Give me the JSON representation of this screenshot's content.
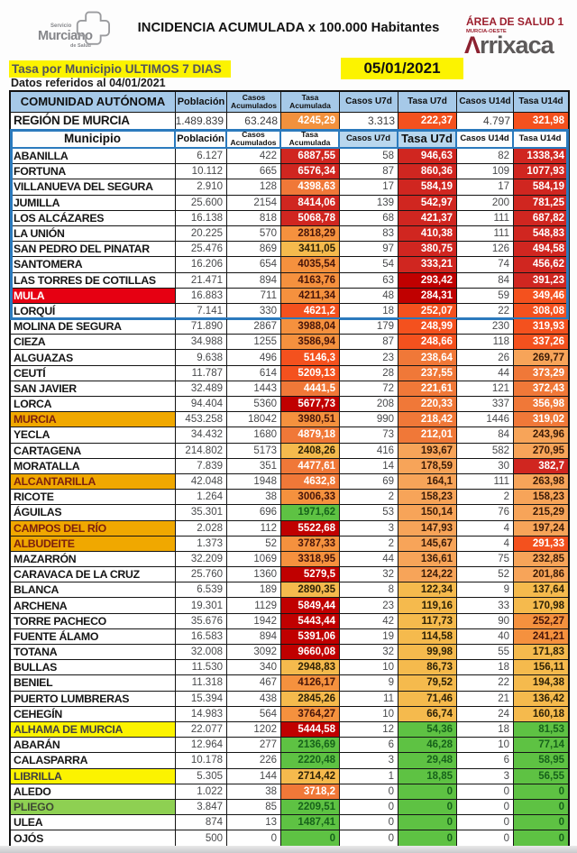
{
  "header": {
    "logo": {
      "line1": "Servicio",
      "line2": "Murciano",
      "line3": "de Salud"
    },
    "title": "INCIDENCIA ACUMULADA x 100.000 Habitantes",
    "area_line1": "ÁREA DE SALUD 1",
    "area_line2": "MURCIA-OESTE",
    "brand_first": "Λ",
    "brand_rest": "rrixaca",
    "subtitle": "Tasa por Municipio ULTIMOS 7 DIAS",
    "date": "05/01/2021",
    "note": "Datos referidos al 04/01/2021"
  },
  "colors": {
    "header_blue": "#a6c9e8",
    "blue_border": "#2b7abd",
    "value_dark_red": "#c00000",
    "value_red": "#d02620",
    "value_orange_red": "#f4511e",
    "value_orange": "#f07838",
    "value_orange_white_text": "#f2913d",
    "value_orange_black": "#f5913e",
    "value_light_orange": "#f7a459",
    "value_yellow_orange": "#f5ba4d",
    "value_green": "#5ec243",
    "name_red": "#e60012",
    "name_amber": "#f0a800",
    "name_yellow": "#fcf300",
    "name_light_green": "#8ed052",
    "highlight_yellow": "#fcf300"
  },
  "table": {
    "header1_col0": "COMUNIDAD AUTÓNOMA",
    "header2_col0": "Municipio",
    "columns": [
      {
        "label": "Población",
        "two": false
      },
      {
        "label": "Casos",
        "label2": "Acumulados",
        "two": true
      },
      {
        "label": "Tasa",
        "label2": "Acumulada",
        "two": true
      },
      {
        "label": "Casos U7d",
        "two": false
      },
      {
        "label": "Tasa U7d",
        "two": false
      },
      {
        "label": "Casos U14d",
        "two": false
      },
      {
        "label": "Tasa U14d",
        "two": false
      }
    ],
    "region_row": {
      "name": "REGIÓN DE MURCIA",
      "pop": "1.489.839",
      "ca": "63.248",
      "ta": "4245,29",
      "tac": "orbw",
      "c7": "3.313",
      "t7": "222,37",
      "t7c": "ored",
      "c14": "4.797",
      "t14": "321,98",
      "t14c": "ored"
    },
    "blue_box_row_count": 11,
    "rows": [
      {
        "name": "ABANILLA",
        "pop": "6.127",
        "ca": "422",
        "ta": "6887,55",
        "tac": "red",
        "c7": "58",
        "t7": "946,63",
        "t7c": "red",
        "c14": "82",
        "t14": "1338,34",
        "t14c": "red"
      },
      {
        "name": "FORTUNA",
        "pop": "10.112",
        "ca": "665",
        "ta": "6576,34",
        "tac": "red",
        "c7": "87",
        "t7": "860,36",
        "t7c": "red",
        "c14": "109",
        "t14": "1077,93",
        "t14c": "red"
      },
      {
        "name": "VILLANUEVA DEL SEGURA",
        "pop": "2.910",
        "ca": "128",
        "ta": "4398,63",
        "tac": "or",
        "c7": "17",
        "t7": "584,19",
        "t7c": "red",
        "c14": "17",
        "t14": "584,19",
        "t14c": "red"
      },
      {
        "name": "JUMILLA",
        "pop": "25.600",
        "ca": "2154",
        "ta": "8414,06",
        "tac": "red",
        "c7": "139",
        "t7": "542,97",
        "t7c": "red",
        "c14": "200",
        "t14": "781,25",
        "t14c": "red"
      },
      {
        "name": "LOS ALCÁZARES",
        "pop": "16.138",
        "ca": "818",
        "ta": "5068,78",
        "tac": "red",
        "c7": "68",
        "t7": "421,37",
        "t7c": "red",
        "c14": "111",
        "t14": "687,82",
        "t14c": "red"
      },
      {
        "name": "LA UNIÓN",
        "pop": "20.225",
        "ca": "570",
        "ta": "2818,29",
        "tac": "orb",
        "c7": "83",
        "t7": "410,38",
        "t7c": "red",
        "c14": "111",
        "t14": "548,83",
        "t14c": "red"
      },
      {
        "name": "SAN PEDRO DEL PINATAR",
        "pop": "25.476",
        "ca": "869",
        "ta": "3411,05",
        "tac": "yor",
        "c7": "97",
        "t7": "380,75",
        "t7c": "red",
        "c14": "126",
        "t14": "494,58",
        "t14c": "red"
      },
      {
        "name": "SANTOMERA",
        "pop": "16.206",
        "ca": "654",
        "ta": "4035,54",
        "tac": "orb",
        "c7": "54",
        "t7": "333,21",
        "t7c": "red",
        "c14": "74",
        "t14": "456,62",
        "t14c": "red"
      },
      {
        "name": "LAS TORRES DE COTILLAS",
        "pop": "21.471",
        "ca": "894",
        "ta": "4163,76",
        "tac": "orb",
        "c7": "63",
        "t7": "293,42",
        "t7c": "dred",
        "c14": "84",
        "t14": "391,23",
        "t14c": "red"
      },
      {
        "name": "MULA",
        "nbg": "red",
        "pop": "16.883",
        "ca": "711",
        "ta": "4211,34",
        "tac": "orb",
        "c7": "48",
        "t7": "284,31",
        "t7c": "dred",
        "c14": "59",
        "t14": "349,46",
        "t14c": "ored"
      },
      {
        "name": "LORQUÍ",
        "pop": "7.141",
        "ca": "330",
        "ta": "4621,2",
        "tac": "ored",
        "c7": "18",
        "t7": "252,07",
        "t7c": "ored",
        "c14": "22",
        "t14": "308,08",
        "t14c": "ored"
      },
      {
        "name": "MOLINA DE SEGURA",
        "pop": "71.890",
        "ca": "2867",
        "ta": "3988,04",
        "tac": "orb",
        "c7": "179",
        "t7": "248,99",
        "t7c": "ored",
        "c14": "230",
        "t14": "319,93",
        "t14c": "ored"
      },
      {
        "name": "CIEZA",
        "pop": "34.988",
        "ca": "1255",
        "ta": "3586,94",
        "tac": "orb",
        "c7": "87",
        "t7": "248,66",
        "t7c": "ored",
        "c14": "118",
        "t14": "337,26",
        "t14c": "ored"
      },
      {
        "name": "ALGUAZAS",
        "pop": "9.638",
        "ca": "496",
        "ta": "5146,3",
        "tac": "ored",
        "c7": "23",
        "t7": "238,64",
        "t7c": "or",
        "c14": "26",
        "t14": "269,77",
        "t14c": "lor"
      },
      {
        "name": "CEUTÍ",
        "pop": "11.787",
        "ca": "614",
        "ta": "5209,13",
        "tac": "ored",
        "c7": "28",
        "t7": "237,55",
        "t7c": "or",
        "c14": "44",
        "t14": "373,29",
        "t14c": "or"
      },
      {
        "name": "SAN JAVIER",
        "pop": "32.489",
        "ca": "1443",
        "ta": "4441,5",
        "tac": "or",
        "c7": "72",
        "t7": "221,61",
        "t7c": "or",
        "c14": "121",
        "t14": "372,43",
        "t14c": "or"
      },
      {
        "name": "LORCA",
        "pop": "94.404",
        "ca": "5360",
        "ta": "5677,73",
        "tac": "dred",
        "c7": "208",
        "t7": "220,33",
        "t7c": "or",
        "c14": "337",
        "t14": "356,98",
        "t14c": "or"
      },
      {
        "name": "MURCIA",
        "nbg": "amber",
        "pop": "453.258",
        "ca": "18042",
        "ta": "3980,51",
        "tac": "orb",
        "c7": "990",
        "t7": "218,42",
        "t7c": "or",
        "c14": "1446",
        "t14": "319,02",
        "t14c": "or"
      },
      {
        "name": "YECLA",
        "pop": "34.432",
        "ca": "1680",
        "ta": "4879,18",
        "tac": "or",
        "c7": "73",
        "t7": "212,01",
        "t7c": "or",
        "c14": "84",
        "t14": "243,96",
        "t14c": "lor"
      },
      {
        "name": "CARTAGENA",
        "pop": "214.802",
        "ca": "5173",
        "ta": "2408,26",
        "tac": "yor",
        "c7": "416",
        "t7": "193,67",
        "t7c": "lor",
        "c14": "582",
        "t14": "270,95",
        "t14c": "lor"
      },
      {
        "name": "MORATALLA",
        "pop": "7.839",
        "ca": "351",
        "ta": "4477,61",
        "tac": "or",
        "c7": "14",
        "t7": "178,59",
        "t7c": "lor",
        "c14": "30",
        "t14": "382,7",
        "t14c": "red"
      },
      {
        "name": "ALCANTARILLA",
        "nbg": "amber",
        "pop": "42.048",
        "ca": "1948",
        "ta": "4632,8",
        "tac": "or",
        "c7": "69",
        "t7": "164,1",
        "t7c": "lor",
        "c14": "111",
        "t14": "263,98",
        "t14c": "lor"
      },
      {
        "name": "RICOTE",
        "pop": "1.264",
        "ca": "38",
        "ta": "3006,33",
        "tac": "orb",
        "c7": "2",
        "t7": "158,23",
        "t7c": "lor",
        "c14": "2",
        "t14": "158,23",
        "t14c": "lor"
      },
      {
        "name": "ÁGUILAS",
        "pop": "35.301",
        "ca": "696",
        "ta": "1971,62",
        "tac": "grn",
        "c7": "53",
        "t7": "150,14",
        "t7c": "lor",
        "c14": "76",
        "t14": "215,29",
        "t14c": "lor"
      },
      {
        "name": "CAMPOS DEL RÍO",
        "nbg": "amber",
        "pop": "2.028",
        "ca": "112",
        "ta": "5522,68",
        "tac": "dred",
        "c7": "3",
        "t7": "147,93",
        "t7c": "lor",
        "c14": "4",
        "t14": "197,24",
        "t14c": "lor"
      },
      {
        "name": "ALBUDEITE",
        "nbg": "amber",
        "pop": "1.373",
        "ca": "52",
        "ta": "3787,33",
        "tac": "orb",
        "c7": "2",
        "t7": "145,67",
        "t7c": "lor",
        "c14": "4",
        "t14": "291,33",
        "t14c": "ored"
      },
      {
        "name": "MAZARRÓN",
        "pop": "32.209",
        "ca": "1069",
        "ta": "3318,95",
        "tac": "orb",
        "c7": "44",
        "t7": "136,61",
        "t7c": "lor",
        "c14": "75",
        "t14": "232,85",
        "t14c": "lor"
      },
      {
        "name": "CARAVACA DE LA CRUZ",
        "pop": "25.760",
        "ca": "1360",
        "ta": "5279,5",
        "tac": "dred",
        "c7": "32",
        "t7": "124,22",
        "t7c": "lor",
        "c14": "52",
        "t14": "201,86",
        "t14c": "lor"
      },
      {
        "name": "BLANCA",
        "pop": "6.539",
        "ca": "189",
        "ta": "2890,35",
        "tac": "yor",
        "c7": "8",
        "t7": "122,34",
        "t7c": "yor",
        "c14": "9",
        "t14": "137,64",
        "t14c": "yor"
      },
      {
        "name": "ARCHENA",
        "pop": "19.301",
        "ca": "1129",
        "ta": "5849,44",
        "tac": "dred",
        "c7": "23",
        "t7": "119,16",
        "t7c": "yor",
        "c14": "33",
        "t14": "170,98",
        "t14c": "yor"
      },
      {
        "name": "TORRE PACHECO",
        "pop": "35.676",
        "ca": "1942",
        "ta": "5443,44",
        "tac": "dred",
        "c7": "42",
        "t7": "117,73",
        "t7c": "yor",
        "c14": "90",
        "t14": "252,27",
        "t14c": "orb"
      },
      {
        "name": "FUENTE ÁLAMO",
        "pop": "16.583",
        "ca": "894",
        "ta": "5391,06",
        "tac": "dred",
        "c7": "19",
        "t7": "114,58",
        "t7c": "yor",
        "c14": "40",
        "t14": "241,21",
        "t14c": "orb"
      },
      {
        "name": "TOTANA",
        "pop": "32.008",
        "ca": "3092",
        "ta": "9660,08",
        "tac": "dred",
        "c7": "32",
        "t7": "99,98",
        "t7c": "yor",
        "c14": "55",
        "t14": "171,83",
        "t14c": "yor"
      },
      {
        "name": "BULLAS",
        "pop": "11.530",
        "ca": "340",
        "ta": "2948,83",
        "tac": "yor",
        "c7": "10",
        "t7": "86,73",
        "t7c": "yor",
        "c14": "18",
        "t14": "156,11",
        "t14c": "yor"
      },
      {
        "name": "BENIEL",
        "pop": "11.318",
        "ca": "467",
        "ta": "4126,17",
        "tac": "orb",
        "c7": "9",
        "t7": "79,52",
        "t7c": "yor",
        "c14": "22",
        "t14": "194,38",
        "t14c": "yor"
      },
      {
        "name": "PUERTO LUMBRERAS",
        "pop": "15.394",
        "ca": "438",
        "ta": "2845,26",
        "tac": "yor",
        "c7": "11",
        "t7": "71,46",
        "t7c": "yor",
        "c14": "21",
        "t14": "136,42",
        "t14c": "yor"
      },
      {
        "name": "CEHEGÍN",
        "pop": "14.983",
        "ca": "564",
        "ta": "3764,27",
        "tac": "orb",
        "c7": "10",
        "t7": "66,74",
        "t7c": "yor",
        "c14": "24",
        "t14": "160,18",
        "t14c": "yor"
      },
      {
        "name": "ALHAMA DE MURCIA",
        "nbg": "yellow",
        "pop": "22.077",
        "ca": "1202",
        "ta": "5444,58",
        "tac": "dred",
        "c7": "12",
        "t7": "54,36",
        "t7c": "grn",
        "c14": "18",
        "t14": "81,53",
        "t14c": "grn"
      },
      {
        "name": "ABARÁN",
        "pop": "12.964",
        "ca": "277",
        "ta": "2136,69",
        "tac": "grn",
        "c7": "6",
        "t7": "46,28",
        "t7c": "grn",
        "c14": "10",
        "t14": "77,14",
        "t14c": "grn"
      },
      {
        "name": "CALASPARRA",
        "pop": "10.178",
        "ca": "226",
        "ta": "2220,48",
        "tac": "grn",
        "c7": "3",
        "t7": "29,48",
        "t7c": "grn",
        "c14": "6",
        "t14": "58,95",
        "t14c": "grn"
      },
      {
        "name": "LIBRILLA",
        "nbg": "yellow",
        "pop": "5.305",
        "ca": "144",
        "ta": "2714,42",
        "tac": "yor",
        "c7": "1",
        "t7": "18,85",
        "t7c": "grn",
        "c14": "3",
        "t14": "56,55",
        "t14c": "grn"
      },
      {
        "name": "ALEDO",
        "pop": "1.022",
        "ca": "38",
        "ta": "3718,2",
        "tac": "or",
        "c7": "0",
        "t7": "0",
        "t7c": "grn",
        "c14": "0",
        "t14": "0",
        "t14c": "grn"
      },
      {
        "name": "PLIEGO",
        "nbg": "lgreen",
        "pop": "3.847",
        "ca": "85",
        "ta": "2209,51",
        "tac": "grn",
        "c7": "0",
        "t7": "0",
        "t7c": "grn",
        "c14": "0",
        "t14": "0",
        "t14c": "grn"
      },
      {
        "name": "ULEA",
        "pop": "874",
        "ca": "13",
        "ta": "1487,41",
        "tac": "grn",
        "c7": "0",
        "t7": "0",
        "t7c": "grn",
        "c14": "0",
        "t14": "0",
        "t14c": "grn"
      },
      {
        "name": "OJÓS",
        "pop": "500",
        "ca": "0",
        "ta": "0",
        "tac": "grn",
        "c7": "0",
        "t7": "0",
        "t7c": "grn",
        "c14": "0",
        "t14": "0",
        "t14c": "grn"
      }
    ]
  }
}
